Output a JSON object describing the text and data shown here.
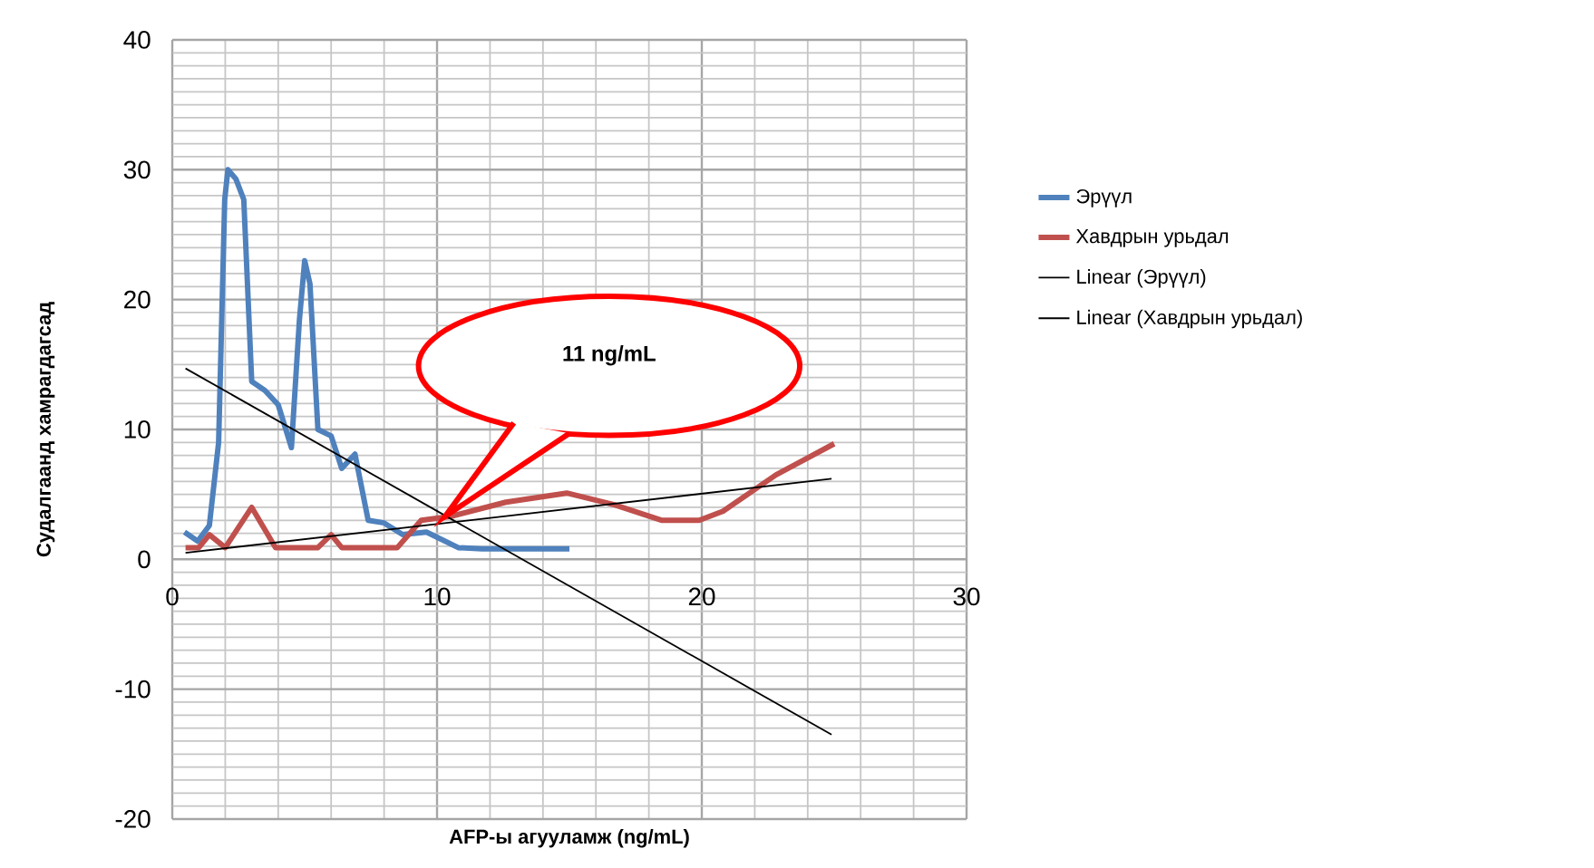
{
  "chart_data": {
    "type": "line",
    "xlabel": "AFP-ы агууламж (ng/mL)",
    "ylabel": "Судалгаанд хамрагдагсад",
    "xlim": [
      0,
      30
    ],
    "ylim": [
      -20,
      40
    ],
    "xticks": [
      0,
      10,
      20,
      30
    ],
    "yticks": [
      -20,
      -10,
      0,
      10,
      20,
      30,
      40
    ],
    "grid": true,
    "legend": "right",
    "marker": "none",
    "line_style": "solid",
    "annotations": [
      "11 ng/mL"
    ],
    "series": [
      {
        "name": "Эрүүл",
        "color": "#4f81bd",
        "x": [
          0.46,
          0.96,
          1.4,
          1.75,
          1.98,
          2.1,
          2.4,
          2.7,
          3.0,
          3.5,
          4.0,
          4.5,
          4.8,
          5.0,
          5.2,
          5.5,
          6.0,
          6.4,
          6.9,
          7.4,
          8.0,
          8.7,
          9.6,
          10.8,
          11.7,
          15
        ],
        "values": [
          2.1,
          1.4,
          2.6,
          9,
          27.7,
          30,
          29.3,
          27.7,
          13.7,
          13,
          11.9,
          8.6,
          18.4,
          23,
          21.2,
          10,
          9.5,
          7,
          8.1,
          3,
          2.8,
          1.9,
          2.1,
          0.9,
          0.8,
          0.8
        ]
      },
      {
        "name": "Хавдрын урьдал",
        "color": "#c0504d",
        "x": [
          0.5,
          1,
          1.4,
          2,
          3,
          3.9,
          5.5,
          6,
          6.4,
          8.5,
          9.4,
          10.5,
          12.6,
          14.9,
          16.7,
          18.5,
          19.9,
          20.8,
          22.8,
          25
        ],
        "values": [
          0.9,
          0.9,
          1.9,
          0.9,
          4,
          0.9,
          0.9,
          1.9,
          0.9,
          0.9,
          3,
          3.3,
          4.4,
          5.1,
          4.2,
          3,
          3,
          3.7,
          6.5,
          8.9
        ]
      },
      {
        "name": "Linear (Эрүүл)",
        "color": "#000000",
        "x": [
          0.5,
          24.9
        ],
        "values": [
          14.7,
          -13.5
        ]
      },
      {
        "name": "Linear (Хавдрын урьдал)",
        "color": "#000000",
        "x": [
          0.5,
          24.9
        ],
        "values": [
          0.5,
          6.2
        ]
      }
    ]
  }
}
